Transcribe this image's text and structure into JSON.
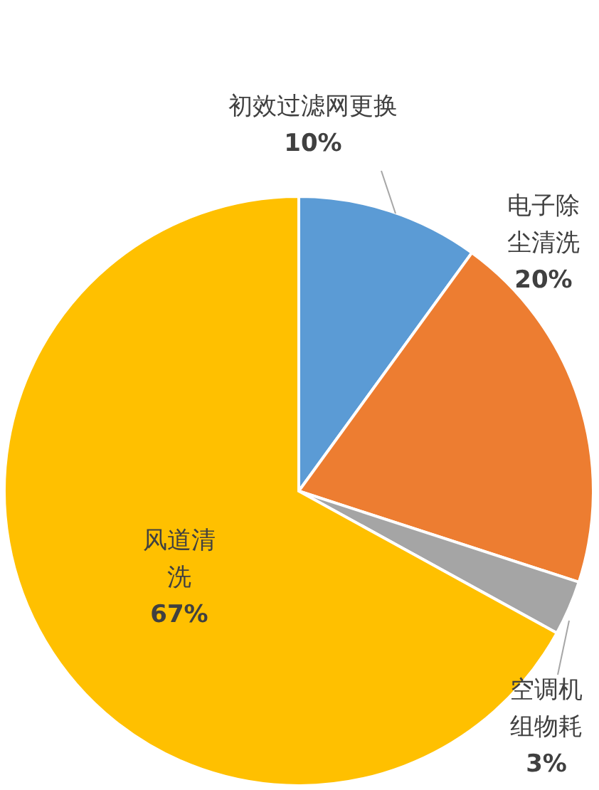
{
  "chart_data": {
    "type": "pie",
    "categories": [
      "初效过滤网更换",
      "电子除尘清洗",
      "空调机组物耗",
      "风道清洗"
    ],
    "values": [
      10,
      20,
      3,
      67
    ],
    "colors": [
      "#5b9bd5",
      "#ed7d31",
      "#a5a5a5",
      "#ffc000"
    ],
    "value_labels": [
      "10%",
      "20%",
      "3%",
      "67%"
    ],
    "legend": false
  }
}
